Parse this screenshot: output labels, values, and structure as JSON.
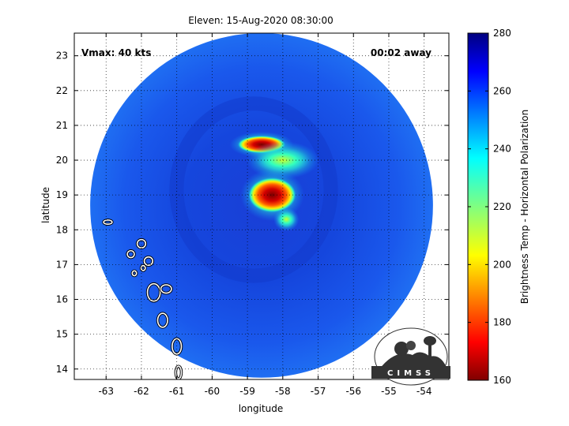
{
  "chart_data": {
    "type": "heatmap",
    "title": "Eleven: 15-Aug-2020 08:30:00",
    "xlabel": "longitude",
    "ylabel": "latitude",
    "xlim": [
      -63.9,
      -53.3
    ],
    "ylim": [
      13.7,
      23.65
    ],
    "xticks": [
      -63,
      -62,
      -61,
      -60,
      -59,
      -58,
      -57,
      -56,
      -55,
      -54
    ],
    "yticks": [
      14,
      15,
      16,
      17,
      18,
      19,
      20,
      21,
      22,
      23
    ],
    "grid": "dotted",
    "annotations": {
      "vmax": "Vmax: 40 kts",
      "time_offset": "00:02 away"
    },
    "swath": {
      "center_lon": -58.6,
      "center_lat": 18.7,
      "radius_lon": 4.85,
      "radius_lat": 4.95,
      "background_temp_k": 265
    },
    "cold_features": [
      {
        "lon": -58.6,
        "lat": 20.45,
        "temp_k": 172,
        "label": "north band"
      },
      {
        "lon": -58.3,
        "lat": 19.0,
        "temp_k": 162,
        "label": "core"
      },
      {
        "lon": -58.0,
        "lat": 20.0,
        "temp_k": 215,
        "label": "middle band"
      },
      {
        "lon": -57.9,
        "lat": 18.3,
        "temp_k": 225,
        "label": "southern tail"
      }
    ],
    "colorbar": {
      "label": "Brightness Temp - Horizontal Polarization",
      "min": 160,
      "max": 280,
      "ticks": [
        280,
        260,
        240,
        220,
        200,
        180,
        160
      ],
      "colormap": "jet"
    },
    "logo": "CIMSS"
  }
}
